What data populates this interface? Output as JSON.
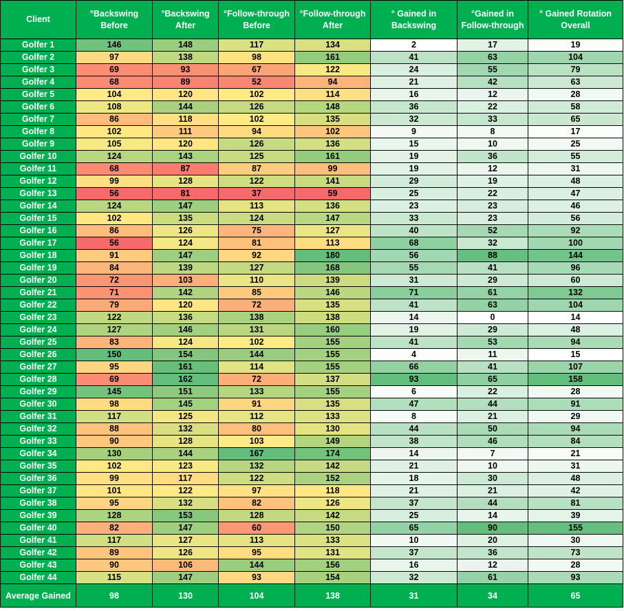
{
  "headers": [
    "Client",
    "°Backswing Before",
    "°Backswing After",
    "°Follow-through Before",
    "°Follow-through After",
    "° Gained in Backswing",
    "°Gained in Follow-through",
    "° Gained Rotation Overall"
  ],
  "rows": [
    [
      "Golfer 1",
      146,
      148,
      117,
      134,
      2,
      17,
      19
    ],
    [
      "Golfer 2",
      97,
      138,
      98,
      161,
      41,
      63,
      104
    ],
    [
      "Golfer 3",
      69,
      93,
      67,
      122,
      24,
      55,
      79
    ],
    [
      "Golfer 4",
      68,
      89,
      52,
      94,
      21,
      42,
      63
    ],
    [
      "Golfer 5",
      104,
      120,
      102,
      114,
      16,
      12,
      28
    ],
    [
      "Golfer 6",
      108,
      144,
      126,
      148,
      36,
      22,
      58
    ],
    [
      "Golfer 7",
      86,
      118,
      102,
      135,
      32,
      33,
      65
    ],
    [
      "Golfer 8",
      102,
      111,
      94,
      102,
      9,
      8,
      17
    ],
    [
      "Golfer 9",
      105,
      120,
      126,
      136,
      15,
      10,
      25
    ],
    [
      "Golfer 10",
      124,
      143,
      125,
      161,
      19,
      36,
      55
    ],
    [
      "Golfer 11",
      68,
      87,
      87,
      99,
      19,
      12,
      31
    ],
    [
      "Golfer 12",
      99,
      128,
      122,
      141,
      29,
      19,
      48
    ],
    [
      "Golfer 13",
      56,
      81,
      37,
      59,
      25,
      22,
      47
    ],
    [
      "Golfer 14",
      124,
      147,
      113,
      136,
      23,
      23,
      46
    ],
    [
      "Golfer 15",
      102,
      135,
      124,
      147,
      33,
      23,
      56
    ],
    [
      "Golfer 16",
      86,
      126,
      75,
      127,
      40,
      52,
      92
    ],
    [
      "Golfer 17",
      56,
      124,
      81,
      113,
      68,
      32,
      100
    ],
    [
      "Golfer 18",
      91,
      147,
      92,
      180,
      56,
      88,
      144
    ],
    [
      "Golfer 19",
      84,
      139,
      127,
      168,
      55,
      41,
      96
    ],
    [
      "Golfer 20",
      72,
      103,
      110,
      139,
      31,
      29,
      60
    ],
    [
      "Golfer 21",
      71,
      142,
      85,
      146,
      71,
      61,
      132
    ],
    [
      "Golfer 22",
      79,
      120,
      72,
      135,
      41,
      63,
      104
    ],
    [
      "Golfer 23",
      122,
      136,
      138,
      138,
      14,
      0,
      14
    ],
    [
      "Golfer 24",
      127,
      146,
      131,
      160,
      19,
      29,
      48
    ],
    [
      "Golfer 25",
      83,
      124,
      102,
      155,
      41,
      53,
      94
    ],
    [
      "Golfer 26",
      150,
      154,
      144,
      155,
      4,
      11,
      15
    ],
    [
      "Golfer 27",
      95,
      161,
      114,
      155,
      66,
      41,
      107
    ],
    [
      "Golfer 28",
      69,
      162,
      72,
      137,
      93,
      65,
      158
    ],
    [
      "Golfer 29",
      145,
      151,
      133,
      155,
      6,
      22,
      28
    ],
    [
      "Golfer 30",
      98,
      145,
      91,
      135,
      47,
      44,
      91
    ],
    [
      "Golfer 31",
      117,
      125,
      112,
      133,
      8,
      21,
      29
    ],
    [
      "Golfer 32",
      88,
      132,
      80,
      130,
      44,
      50,
      94
    ],
    [
      "Golfer 33",
      90,
      128,
      103,
      149,
      38,
      46,
      84
    ],
    [
      "Golfer 34",
      130,
      144,
      167,
      174,
      14,
      7,
      21
    ],
    [
      "Golfer 35",
      102,
      123,
      132,
      142,
      21,
      10,
      31
    ],
    [
      "Golfer 36",
      99,
      117,
      122,
      152,
      18,
      30,
      48
    ],
    [
      "Golfer 37",
      101,
      122,
      97,
      118,
      21,
      21,
      42
    ],
    [
      "Golfer 38",
      95,
      132,
      82,
      126,
      37,
      44,
      81
    ],
    [
      "Golfer 39",
      128,
      153,
      128,
      142,
      25,
      14,
      39
    ],
    [
      "Golfer 40",
      82,
      147,
      60,
      150,
      65,
      90,
      155
    ],
    [
      "Golfer 41",
      117,
      127,
      113,
      133,
      10,
      20,
      30
    ],
    [
      "Golfer 42",
      89,
      126,
      95,
      131,
      37,
      36,
      73
    ],
    [
      "Golfer 43",
      90,
      106,
      144,
      156,
      16,
      12,
      28
    ],
    [
      "Golfer 44",
      115,
      147,
      93,
      154,
      32,
      61,
      93
    ]
  ],
  "footer": [
    "Average Gained",
    98,
    130,
    104,
    138,
    31,
    34,
    65
  ],
  "colors": {
    "header_bg": "#00b050",
    "scale_low": "#f8696b",
    "scale_mid": "#ffeb84",
    "scale_high": "#63be7b",
    "gain_low": "#ffffff",
    "gain_high": "#63be7b"
  }
}
